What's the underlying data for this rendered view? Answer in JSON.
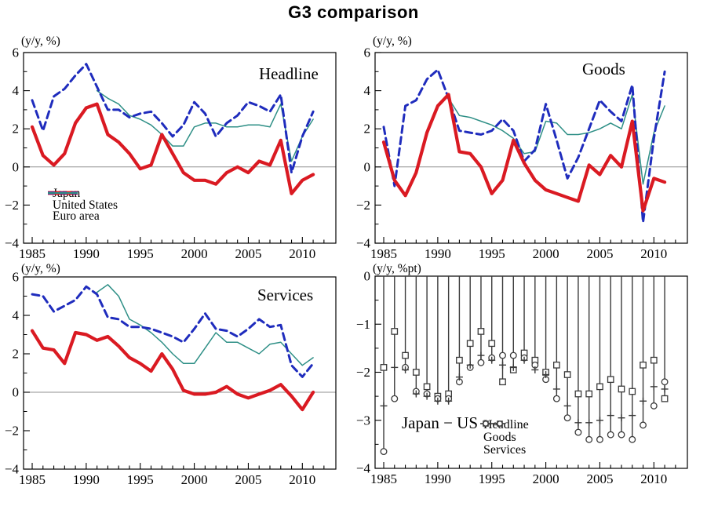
{
  "page": {
    "title": "G3 comparison"
  },
  "chart_data": [
    {
      "type": "line",
      "panel": "headline",
      "title": "Headline",
      "unit": "(y/y, %)",
      "x_start": 1985,
      "x_end": 2011,
      "xlim": [
        1984.2,
        2013.1
      ],
      "xticks_major": [
        1985,
        1990,
        1995,
        2000,
        2005,
        2010
      ],
      "xticks_minor_every": 1,
      "ylim": [
        -4,
        6
      ],
      "yticks": [
        -4,
        -2,
        0,
        2,
        4,
        6
      ],
      "yticks_minor": [
        -3,
        -1,
        1,
        3,
        5
      ],
      "zero_line": true,
      "zero_line_color": "#909090",
      "series": [
        {
          "name": "Japan",
          "color": "#da1a22",
          "style": "solid",
          "width": 4.2,
          "values": [
            2.1,
            0.6,
            0.1,
            0.7,
            2.3,
            3.1,
            3.3,
            1.7,
            1.3,
            0.7,
            -0.1,
            0.1,
            1.7,
            0.7,
            -0.3,
            -0.7,
            -0.7,
            -0.9,
            -0.3,
            0.0,
            -0.3,
            0.3,
            0.1,
            1.4,
            -1.4,
            -0.7,
            -0.4
          ]
        },
        {
          "name": "United States",
          "color": "#1f2cbd",
          "style": "dashed",
          "width": 3,
          "values": [
            3.5,
            1.9,
            3.7,
            4.1,
            4.8,
            5.4,
            4.2,
            3.0,
            3.0,
            2.6,
            2.8,
            2.9,
            2.3,
            1.6,
            2.2,
            3.4,
            2.8,
            1.6,
            2.3,
            2.7,
            3.4,
            3.2,
            2.9,
            3.8,
            -0.3,
            1.6,
            2.9
          ]
        },
        {
          "name": "Euro area",
          "color": "#2e8f86",
          "style": "solid",
          "width": 1.5,
          "values": [
            null,
            null,
            null,
            null,
            null,
            null,
            4.0,
            3.6,
            3.3,
            2.7,
            2.5,
            2.2,
            1.7,
            1.1,
            1.1,
            2.1,
            2.3,
            2.3,
            2.1,
            2.1,
            2.2,
            2.2,
            2.1,
            3.3,
            0.3,
            1.6,
            2.5
          ]
        }
      ]
    },
    {
      "type": "line",
      "panel": "goods",
      "title": "Goods",
      "unit": "(y/y, %)",
      "x_start": 1985,
      "x_end": 2011,
      "xlim": [
        1984.2,
        2013.1
      ],
      "xticks_major": [
        1985,
        1990,
        1995,
        2000,
        2005,
        2010
      ],
      "xticks_minor_every": 1,
      "ylim": [
        -4,
        6
      ],
      "yticks": [
        -4,
        -2,
        0,
        2,
        4,
        6
      ],
      "yticks_minor": [
        -3,
        -1,
        1,
        3,
        5
      ],
      "zero_line": true,
      "zero_line_color": "#909090",
      "series": [
        {
          "name": "Japan",
          "color": "#da1a22",
          "style": "solid",
          "width": 4.2,
          "values": [
            1.3,
            -0.7,
            -1.5,
            -0.3,
            1.8,
            3.2,
            3.8,
            0.8,
            0.7,
            0.0,
            -1.4,
            -0.7,
            1.4,
            0.2,
            -0.7,
            -1.2,
            -1.4,
            -1.6,
            -1.8,
            0.1,
            -0.4,
            0.6,
            0.0,
            2.4,
            -2.3,
            -0.6,
            -0.8
          ]
        },
        {
          "name": "United States",
          "color": "#1f2cbd",
          "style": "dashed",
          "width": 3,
          "values": [
            2.1,
            -1.0,
            3.2,
            3.5,
            4.6,
            5.1,
            3.6,
            1.9,
            1.8,
            1.7,
            1.9,
            2.5,
            1.9,
            0.3,
            0.9,
            3.3,
            1.4,
            -0.6,
            0.5,
            2.0,
            3.5,
            2.9,
            2.4,
            4.3,
            -2.9,
            1.5,
            5.0
          ]
        },
        {
          "name": "Euro area",
          "color": "#2e8f86",
          "style": "solid",
          "width": 1.5,
          "values": [
            null,
            null,
            null,
            null,
            null,
            null,
            3.6,
            2.7,
            2.6,
            2.4,
            2.2,
            1.9,
            1.5,
            0.7,
            0.8,
            2.4,
            2.3,
            1.7,
            1.7,
            1.8,
            2.0,
            2.3,
            2.0,
            3.8,
            -0.9,
            1.8,
            3.2
          ]
        }
      ]
    },
    {
      "type": "line",
      "panel": "services",
      "title": "Services",
      "unit": "(y/y, %)",
      "x_start": 1985,
      "x_end": 2011,
      "xlim": [
        1984.2,
        2013.1
      ],
      "xticks_major": [
        1985,
        1990,
        1995,
        2000,
        2005,
        2010
      ],
      "xticks_minor_every": 1,
      "ylim": [
        -4,
        6
      ],
      "yticks": [
        -4,
        -2,
        0,
        2,
        4,
        6
      ],
      "yticks_minor": [
        -3,
        -1,
        1,
        3,
        5
      ],
      "zero_line": true,
      "zero_line_color": "#909090",
      "series": [
        {
          "name": "Japan",
          "color": "#da1a22",
          "style": "solid",
          "width": 4.2,
          "values": [
            3.2,
            2.3,
            2.2,
            1.5,
            3.1,
            3.0,
            2.7,
            2.9,
            2.4,
            1.8,
            1.5,
            1.1,
            2.0,
            1.2,
            0.1,
            -0.1,
            -0.1,
            0.0,
            0.3,
            -0.1,
            -0.3,
            -0.1,
            0.1,
            0.4,
            -0.2,
            -0.9,
            0.0
          ]
        },
        {
          "name": "United States",
          "color": "#1f2cbd",
          "style": "dashed",
          "width": 3,
          "values": [
            5.1,
            5.0,
            4.2,
            4.5,
            4.8,
            5.5,
            5.1,
            3.9,
            3.8,
            3.4,
            3.4,
            3.3,
            3.1,
            2.9,
            2.6,
            3.3,
            4.1,
            3.3,
            3.2,
            2.9,
            3.3,
            3.8,
            3.4,
            3.5,
            1.4,
            0.8,
            1.5
          ]
        },
        {
          "name": "Euro area",
          "color": "#2e8f86",
          "style": "solid",
          "width": 1.5,
          "values": [
            null,
            null,
            null,
            null,
            null,
            null,
            5.2,
            5.6,
            5.0,
            3.8,
            3.5,
            3.1,
            2.6,
            2.0,
            1.5,
            1.5,
            2.3,
            3.1,
            2.6,
            2.6,
            2.3,
            2.0,
            2.5,
            2.6,
            2.0,
            1.4,
            1.8
          ]
        }
      ]
    },
    {
      "type": "drop-marker",
      "panel": "japan_us",
      "title": "Japan − US",
      "unit": "(y/y, %pt)",
      "x_start": 1985,
      "x_end": 2011,
      "xlim": [
        1984.2,
        2013.1
      ],
      "xticks_major": [
        1985,
        1990,
        1995,
        2000,
        2005,
        2010
      ],
      "xticks_minor_every": 1,
      "ylim": [
        -4,
        0
      ],
      "yticks": [
        0,
        -1,
        -2,
        -3,
        -4
      ],
      "yticks_minor": [
        -0.5,
        -1.5,
        -2.5,
        -3.5
      ],
      "line_color": "#3a3a3a",
      "series": [
        {
          "name": "Headline",
          "marker": "plus",
          "values": [
            -2.7,
            -1.9,
            -1.95,
            -2.45,
            -2.5,
            -2.6,
            -2.6,
            -2.1,
            -1.85,
            -1.65,
            -1.75,
            -1.85,
            -1.9,
            -1.75,
            -1.95,
            -2.05,
            -2.35,
            -2.7,
            -3.05,
            -3.05,
            -3.0,
            -2.9,
            -2.95,
            -2.9,
            -2.6,
            -2.3,
            -2.35
          ]
        },
        {
          "name": "Goods",
          "marker": "square",
          "values": [
            -1.9,
            -1.15,
            -1.65,
            -2.0,
            -2.3,
            -2.5,
            -2.45,
            -1.75,
            -1.4,
            -1.15,
            -1.4,
            -2.2,
            -1.95,
            -1.6,
            -1.75,
            -2.0,
            -1.85,
            -2.05,
            -2.45,
            -2.45,
            -2.3,
            -2.15,
            -2.35,
            -2.4,
            -1.85,
            -1.75,
            -2.55
          ]
        },
        {
          "name": "Services",
          "marker": "circle",
          "values": [
            -3.65,
            -2.55,
            -1.9,
            -2.4,
            -2.45,
            -2.55,
            -2.55,
            -2.2,
            -1.9,
            -1.8,
            -1.7,
            -1.65,
            -1.65,
            -1.7,
            -1.85,
            -2.15,
            -2.55,
            -2.95,
            -3.25,
            -3.4,
            -3.4,
            -3.3,
            -3.3,
            -3.4,
            -3.1,
            -2.7,
            -2.2
          ]
        }
      ]
    }
  ]
}
